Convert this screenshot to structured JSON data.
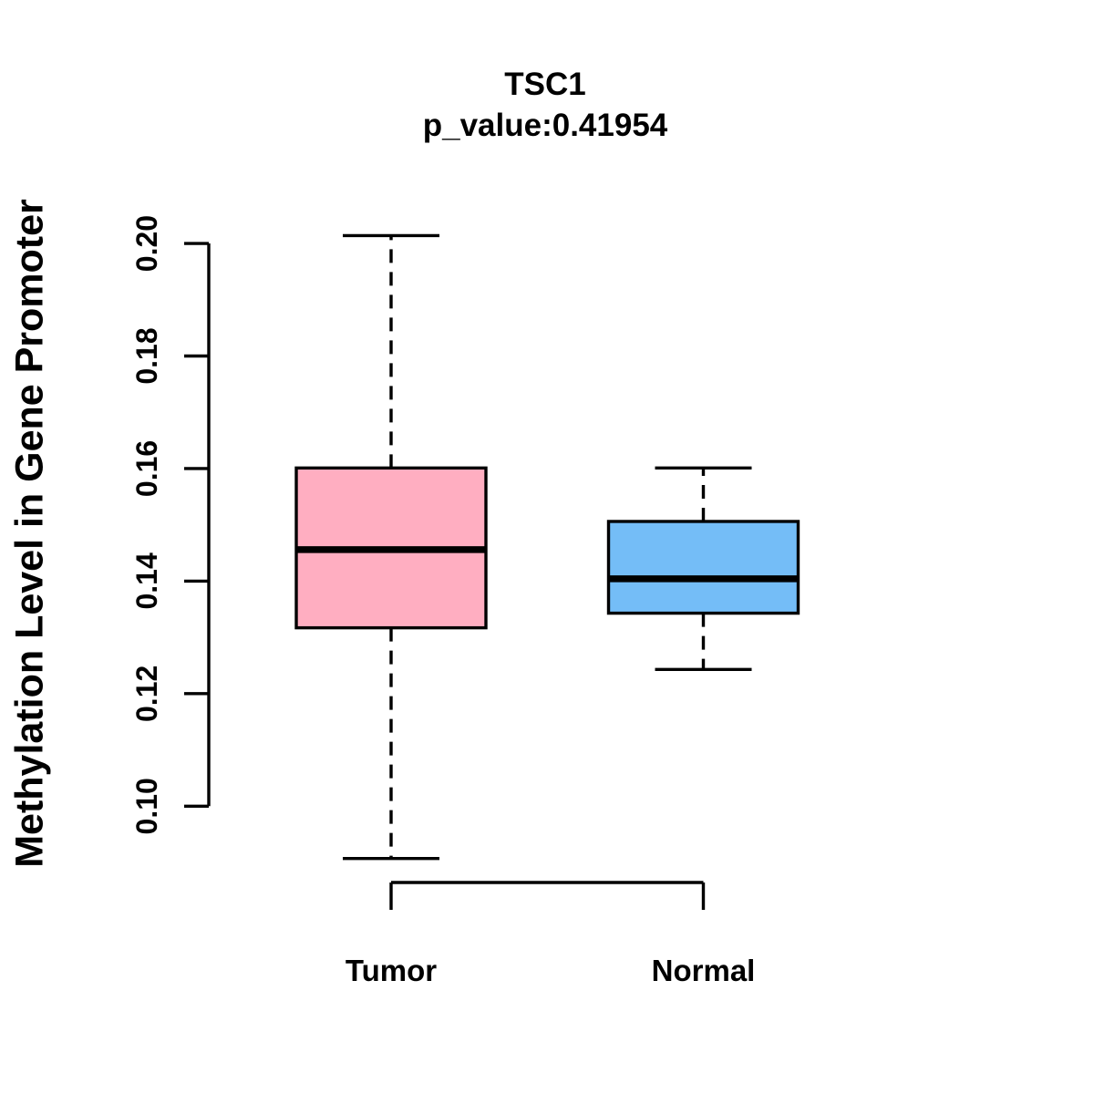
{
  "figure": {
    "background": "#ffffff",
    "foreground": "#000000"
  },
  "chart_data": {
    "type": "boxplot",
    "title": "TSC1",
    "subtitle": "p_value:0.41954",
    "gene": "TSC1",
    "p_value": 0.41954,
    "xlabel": "",
    "ylabel": "Methylation Level in Gene Promoter",
    "ylim": [
      0.1,
      0.2
    ],
    "yticks": [
      "0.10",
      "0.12",
      "0.14",
      "0.16",
      "0.18",
      "0.20"
    ],
    "ytick_values": [
      0.1,
      0.12,
      0.14,
      0.16,
      0.18,
      0.2
    ],
    "categories": [
      "Tumor",
      "Normal"
    ],
    "series": [
      {
        "name": "Tumor",
        "color": "#FFAEC1",
        "whisker_low": 0.0907,
        "q1": 0.1317,
        "median": 0.1456,
        "q3": 0.1601,
        "whisker_high": 0.2014
      },
      {
        "name": "Normal",
        "color": "#74BDF7",
        "whisker_low": 0.1243,
        "q1": 0.1343,
        "median": 0.1404,
        "q3": 0.1506,
        "whisker_high": 0.1601
      }
    ],
    "box_edge_color": "#000000",
    "median_color": "#000000",
    "whisker_style": "dashed",
    "grid": false,
    "legend": false,
    "tick_label_orientation": "vertical"
  }
}
